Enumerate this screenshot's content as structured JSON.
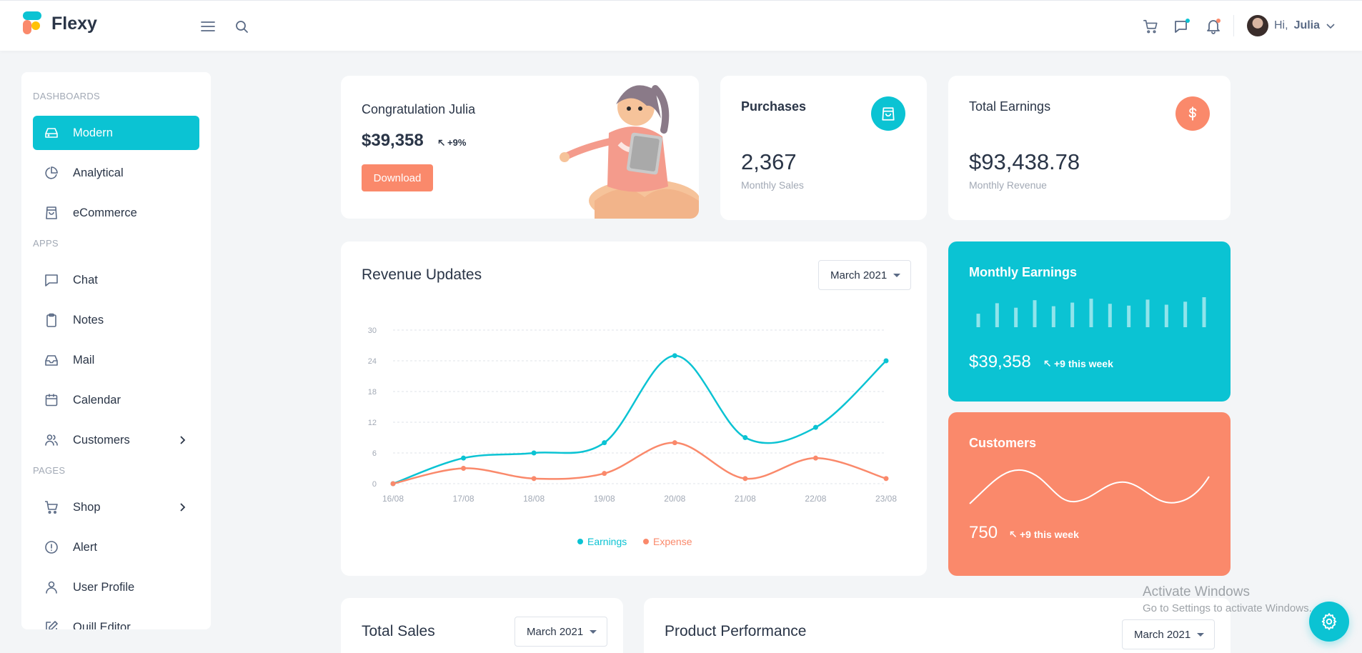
{
  "brand": {
    "name": "Flexy"
  },
  "header": {
    "greeting": "Hi,",
    "user_name": "Julia"
  },
  "colors": {
    "primary": "#0bc3d3",
    "secondary": "#fa896b",
    "text": "#2a3547",
    "muted": "#a2a9b5"
  },
  "sidebar": {
    "sections": [
      {
        "title": "DASHBOARDS",
        "items": [
          {
            "label": "Modern",
            "icon": "drive-icon",
            "active": true
          },
          {
            "label": "Analytical",
            "icon": "pie-chart-icon"
          },
          {
            "label": "eCommerce",
            "icon": "shopping-bag-icon"
          }
        ]
      },
      {
        "title": "APPS",
        "items": [
          {
            "label": "Chat",
            "icon": "chat-icon"
          },
          {
            "label": "Notes",
            "icon": "clipboard-icon"
          },
          {
            "label": "Mail",
            "icon": "inbox-icon"
          },
          {
            "label": "Calendar",
            "icon": "calendar-icon"
          },
          {
            "label": "Customers",
            "icon": "users-icon",
            "has_submenu": true
          }
        ]
      },
      {
        "title": "PAGES",
        "items": [
          {
            "label": "Shop",
            "icon": "shopping-cart-icon",
            "has_submenu": true
          },
          {
            "label": "Alert",
            "icon": "alert-circle-icon"
          },
          {
            "label": "User Profile",
            "icon": "user-icon"
          },
          {
            "label": "Quill Editor",
            "icon": "edit-icon"
          }
        ]
      }
    ]
  },
  "congrats": {
    "title": "Congratulation Julia",
    "amount": "$39,358",
    "change": "+9%",
    "button": "Download"
  },
  "purchases": {
    "title": "Purchases",
    "value": "2,367",
    "sub": "Monthly Sales"
  },
  "earnings": {
    "title": "Total Earnings",
    "value": "$93,438.78",
    "sub": "Monthly Revenue"
  },
  "revenue": {
    "title": "Revenue Updates",
    "period": "March 2021"
  },
  "monthly_earnings": {
    "title": "Monthly Earnings",
    "amount": "$39,358",
    "change": "+9 this week",
    "bars": [
      0.45,
      0.8,
      0.65,
      0.9,
      0.7,
      0.82,
      0.95,
      0.78,
      0.72,
      0.92,
      0.75,
      0.85,
      1.0
    ]
  },
  "customers": {
    "title": "Customers",
    "value": "750",
    "change": "+9 this week"
  },
  "total_sales": {
    "title": "Total Sales",
    "period": "March 2021"
  },
  "product_performance": {
    "title": "Product Performance",
    "period": "March 2021"
  },
  "watermark": {
    "title": "Activate Windows",
    "sub": "Go to Settings to activate Windows."
  },
  "chart_data": {
    "type": "line",
    "title": "Revenue Updates",
    "x": [
      "16/08",
      "17/08",
      "18/08",
      "19/08",
      "20/08",
      "21/08",
      "22/08",
      "23/08"
    ],
    "yticks": [
      0,
      6,
      12,
      18,
      24,
      30
    ],
    "ylim": [
      0,
      30
    ],
    "grid": true,
    "legend": "bottom-center",
    "series": [
      {
        "name": "Earnings",
        "color": "#0bc3d3",
        "values": [
          0,
          5,
          6,
          8,
          25,
          9,
          11,
          24
        ]
      },
      {
        "name": "Expense",
        "color": "#fa896b",
        "values": [
          0,
          3,
          1,
          2,
          8,
          1,
          5,
          1
        ]
      }
    ]
  }
}
